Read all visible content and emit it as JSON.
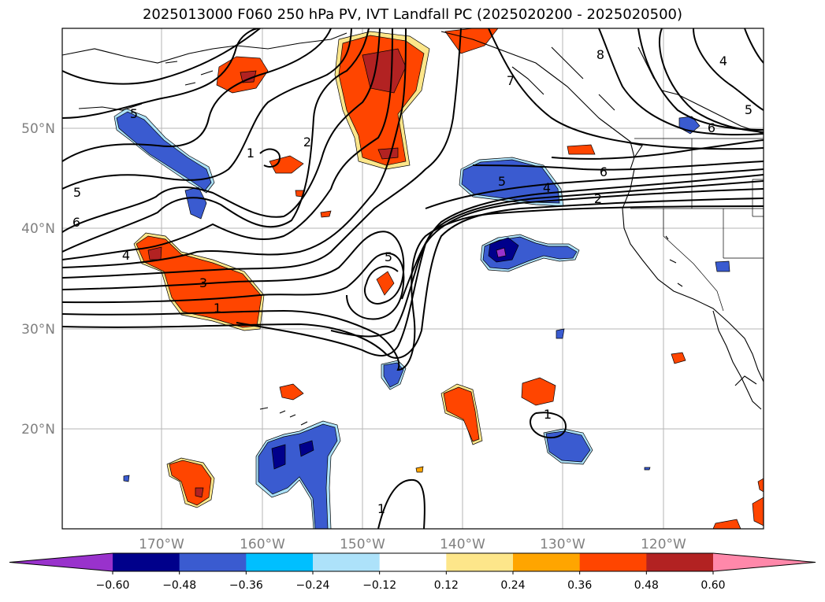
{
  "title": "2025013000 F060 250 hPa PV, IVT Landfall PC (2025020200 - 2025020500)",
  "lat_labels": [
    "50°N",
    "40°N",
    "30°N",
    "20°N"
  ],
  "lon_labels": [
    "170°W",
    "160°W",
    "150°W",
    "140°W",
    "130°W",
    "120°W"
  ],
  "contour_labels": [
    "8",
    "4",
    "5",
    "6",
    "7",
    "2",
    "1",
    "5",
    "6",
    "5",
    "4",
    "6",
    "5",
    "2",
    "4",
    "3",
    "1",
    "5",
    "1",
    "1"
  ],
  "colorbar": {
    "ticks": [
      "−0.60",
      "−0.48",
      "−0.36",
      "−0.24",
      "−0.12",
      "0.12",
      "0.24",
      "0.36",
      "0.48",
      "0.60"
    ],
    "colors": [
      "#9932cc",
      "#00008b",
      "#3a5bd0",
      "#00bfff",
      "#ade2fa",
      "#ffffff",
      "#fde68a",
      "#ffa500",
      "#ff4500",
      "#b22222",
      "#ff88aa"
    ]
  },
  "colors": {
    "neg_strong": "#00008b",
    "neg_mid": "#3a5bd0",
    "neg_light": "#00bfff",
    "pos_light": "#fde68a",
    "pos_mid": "#ffa500",
    "pos_strong": "#ff4500",
    "pos_dark": "#b22222",
    "neg_extreme": "#9932cc"
  }
}
